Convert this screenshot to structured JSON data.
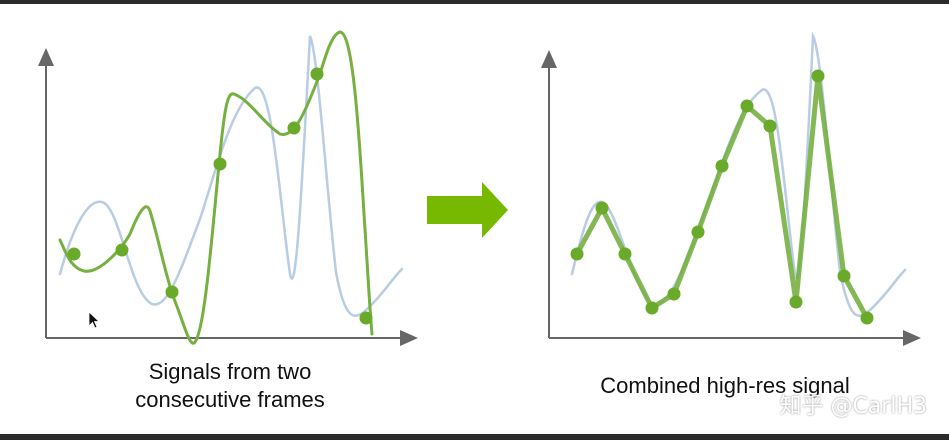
{
  "captions": {
    "left_line1": "Signals from two",
    "left_line2": "consecutive frames",
    "right": "Combined high-res signal"
  },
  "watermark": "知乎 @CarlH3",
  "colors": {
    "reference_signal": "#b8cce4",
    "green_curve": "#76b041",
    "green_dot": "#6aaa2a",
    "arrow": "#76b900",
    "axis": "#666666"
  },
  "icons": {
    "cursor": "mouse-pointer-icon",
    "arrow": "right-arrow-icon"
  }
}
